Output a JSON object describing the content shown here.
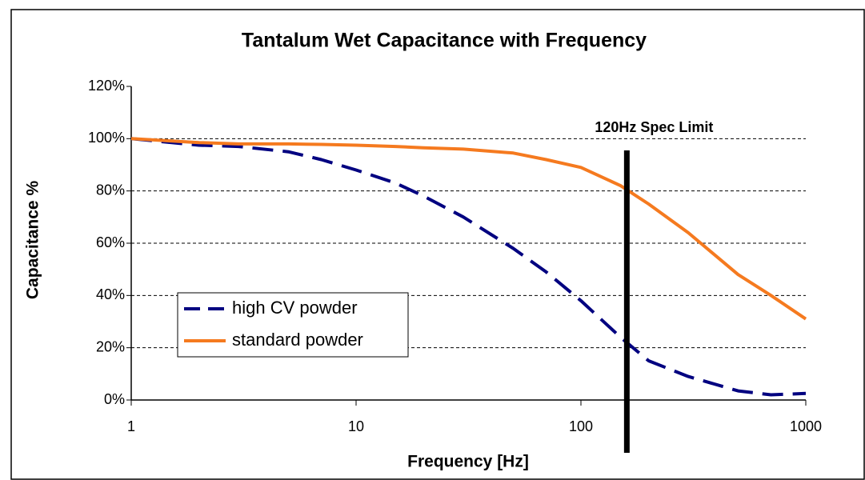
{
  "chart_data": {
    "type": "line",
    "title": "Tantalum Wet Capacitance with Frequency",
    "x_label": "Frequency [Hz]",
    "y_label": "Capacitance %",
    "xscale": "log",
    "x": [
      1,
      2,
      3,
      5,
      7,
      10,
      15,
      20,
      30,
      50,
      70,
      100,
      150,
      200,
      300,
      500,
      700,
      1000
    ],
    "series": [
      {
        "name": "high CV powder",
        "color": "#000080",
        "dash": true,
        "values": [
          100,
          97.5,
          97,
          95,
          92,
          88,
          83,
          78,
          70,
          58,
          49,
          38,
          24,
          15,
          9,
          3.5,
          2,
          2.5
        ]
      },
      {
        "name": "standard powder",
        "color": "#f57a1f",
        "dash": false,
        "values": [
          100,
          98.5,
          98,
          98,
          97.8,
          97.5,
          97,
          96.5,
          96,
          94.5,
          92,
          89,
          82,
          75,
          64,
          48,
          40,
          31
        ]
      }
    ],
    "xlim": [
      1,
      1000
    ],
    "xticks": [
      1,
      10,
      100,
      1000
    ],
    "ylim": [
      0,
      120
    ],
    "yticks": [
      {
        "value": 0,
        "label": "0%"
      },
      {
        "value": 20,
        "label": "20%"
      },
      {
        "value": 40,
        "label": "40%"
      },
      {
        "value": 60,
        "label": "60%"
      },
      {
        "value": 80,
        "label": "80%"
      },
      {
        "value": 100,
        "label": "100%"
      },
      {
        "value": 120,
        "label": "120%"
      }
    ],
    "grid": true,
    "annotations": [
      {
        "text": "120Hz Spec Limit",
        "x": 160
      }
    ]
  }
}
